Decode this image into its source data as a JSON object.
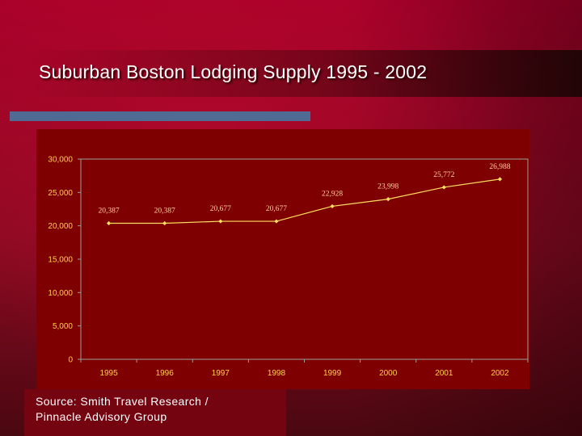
{
  "slide": {
    "title": "Suburban Boston Lodging Supply 1995 - 2002",
    "source_line1": "Source: Smith Travel Research /",
    "source_line2": "Pinnacle Advisory Group"
  },
  "colors": {
    "background": "#a8002a",
    "chart_bg": "#7e0000",
    "accent_bar": "#4f6a93",
    "axis_text": "#ffd04a",
    "series": "#ffe060",
    "data_label": "#ffd0a0",
    "gridline": "#9e9e9e"
  },
  "chart_data": {
    "type": "line",
    "title": "",
    "xlabel": "",
    "ylabel": "",
    "categories": [
      "1995",
      "1996",
      "1997",
      "1998",
      "1999",
      "2000",
      "2001",
      "2002"
    ],
    "series": [
      {
        "values": [
          20387,
          20387,
          20677,
          20677,
          22928,
          23998,
          25772,
          26988
        ]
      }
    ],
    "data_labels": [
      "20,387",
      "20,387",
      "20,677",
      "20,677",
      "22,928",
      "23,998",
      "25,772",
      "26,988"
    ],
    "ylim": [
      0,
      30000
    ],
    "yticks": [
      0,
      5000,
      10000,
      15000,
      20000,
      25000,
      30000
    ],
    "ytick_labels": [
      "0",
      "5,000",
      "10,000",
      "15,000",
      "20,000",
      "25,000",
      "30,000"
    ],
    "grid": false,
    "legend": "none"
  }
}
